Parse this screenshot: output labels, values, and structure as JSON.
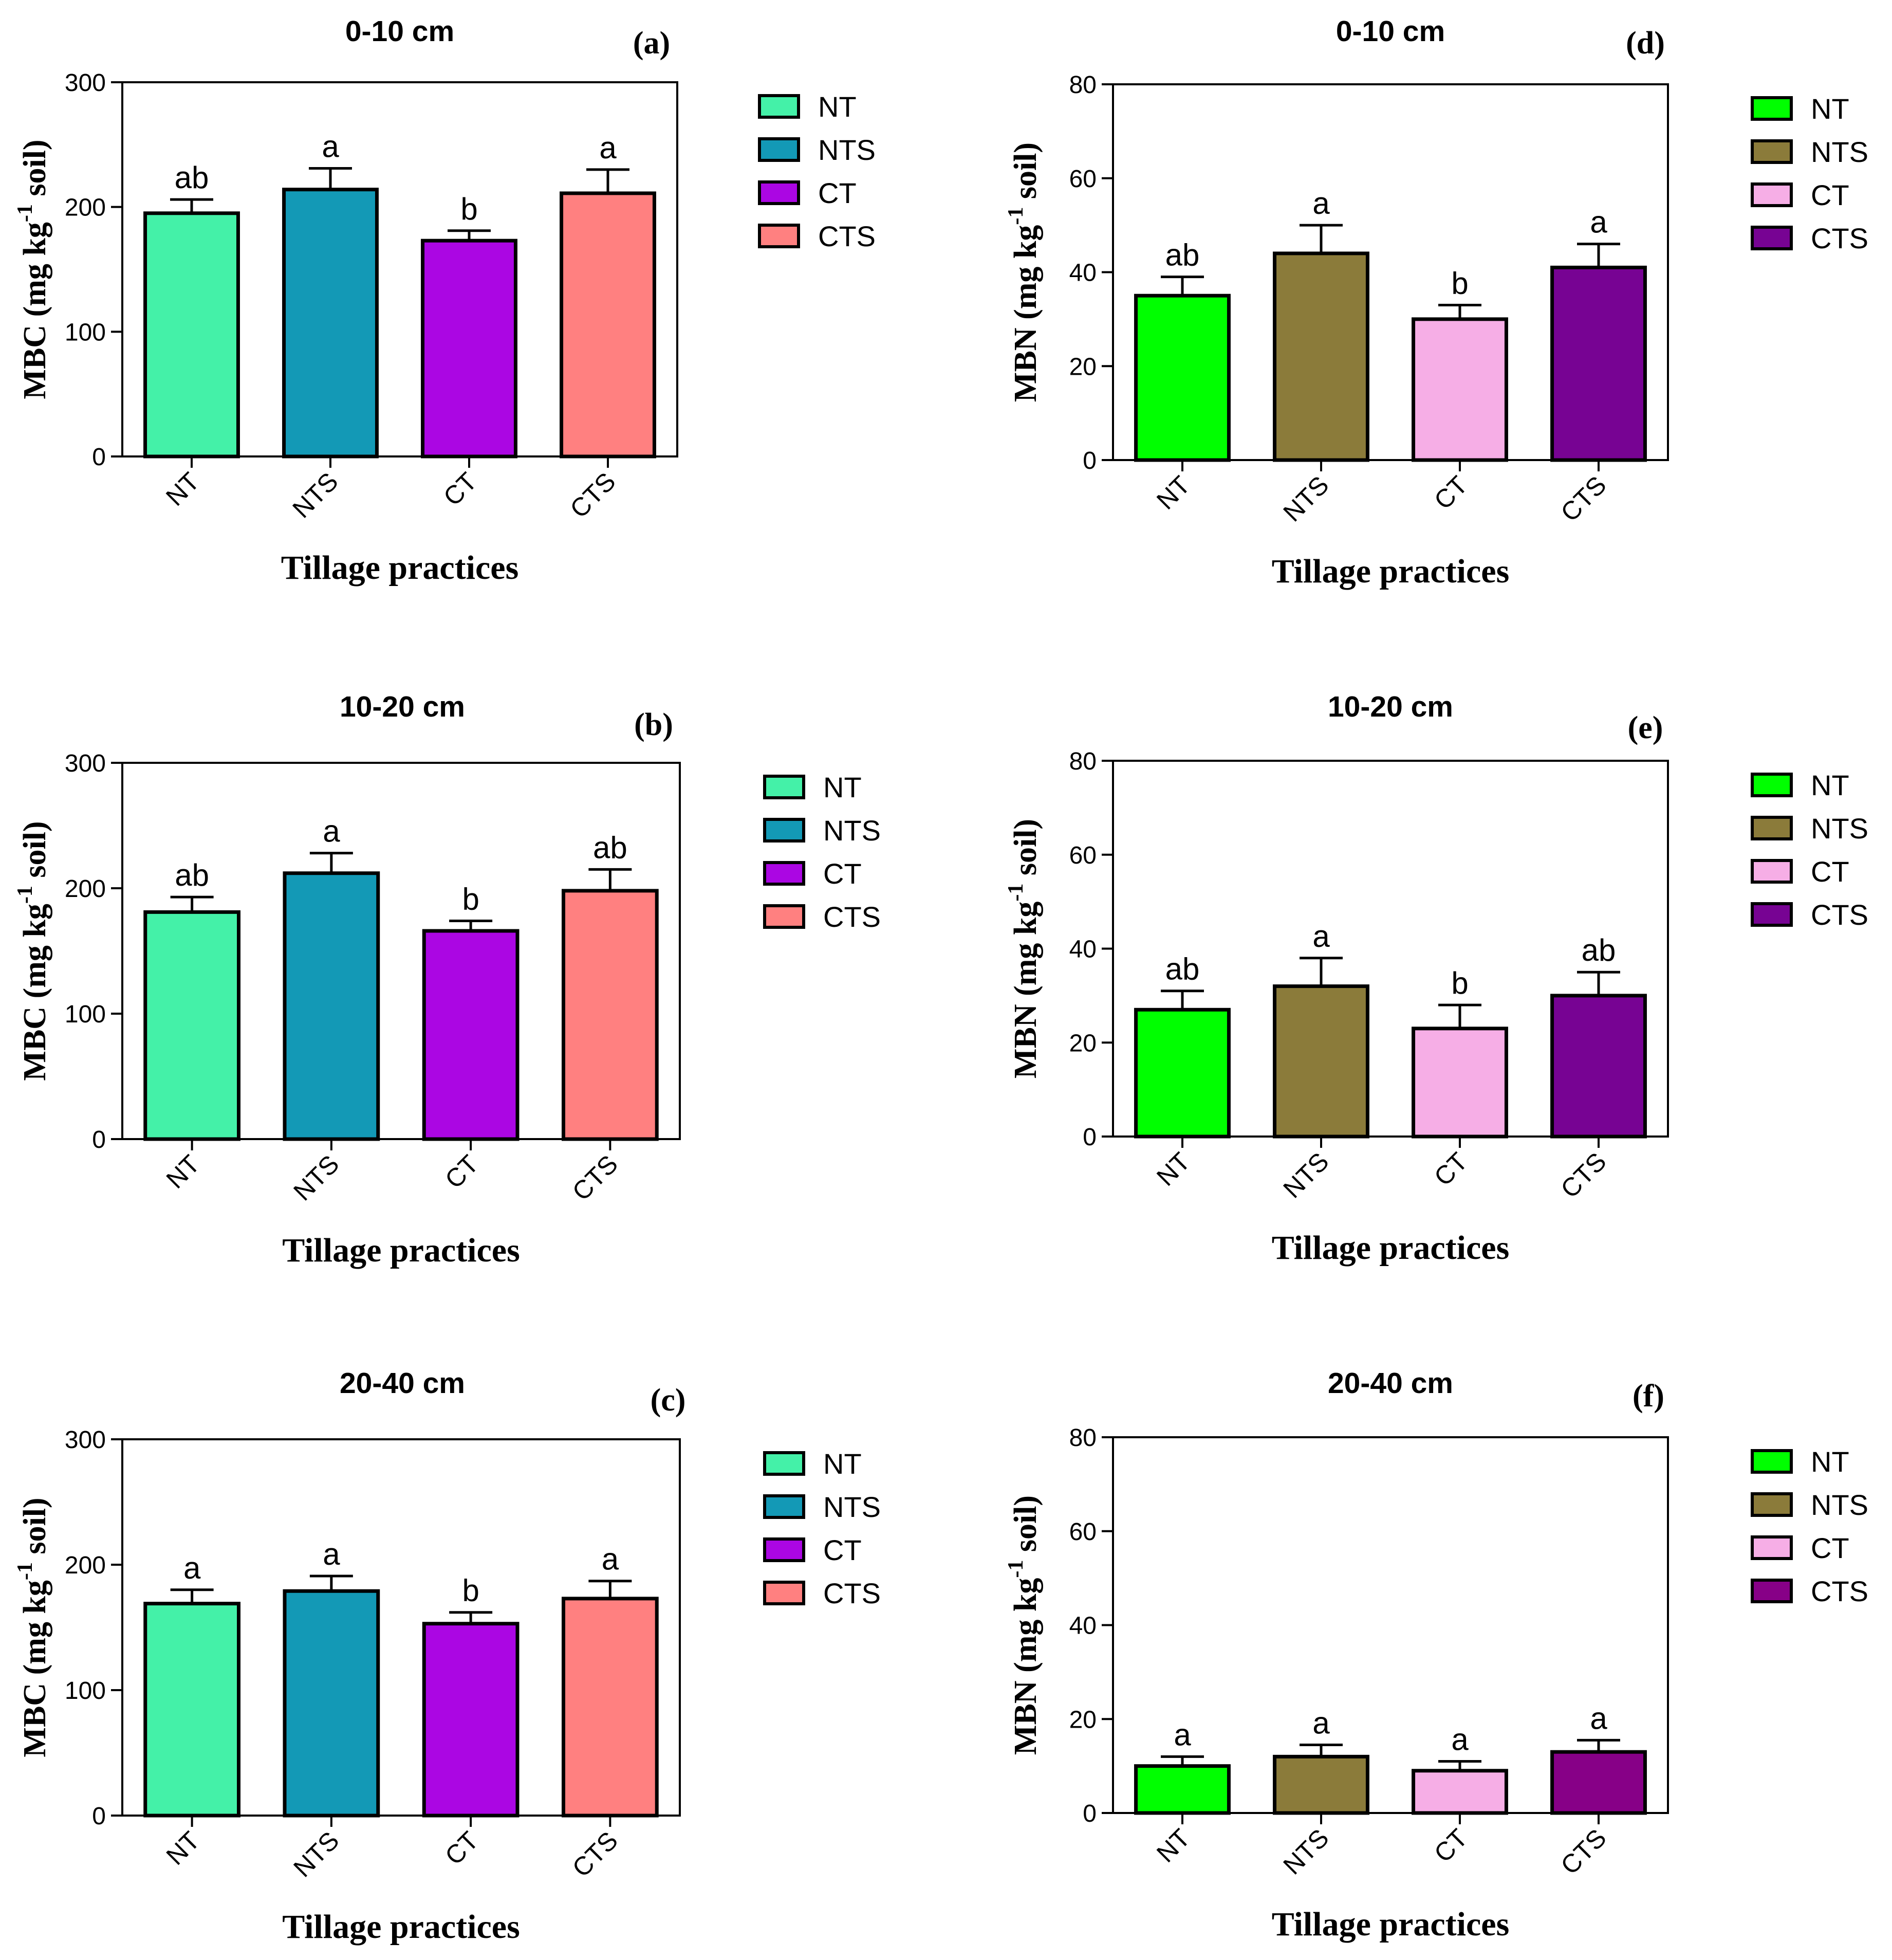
{
  "chart_data": [
    {
      "id": "a",
      "type": "bar",
      "panel_label": "(a)",
      "title": "0-10 cm",
      "ylabel": "MBC (mg kg",
      "ylabel_sup": "-1",
      "ylabel_end": " soil)",
      "xlabel": "Tillage practices",
      "ylim": [
        0,
        300
      ],
      "yticks": [
        "0",
        "100",
        "200",
        "300"
      ],
      "categories": [
        "NT",
        "NTS",
        "CT",
        "CTS"
      ],
      "values": [
        195,
        214,
        173,
        211
      ],
      "errors": [
        11,
        17,
        8,
        19
      ],
      "labels": [
        "ab",
        "a",
        "b",
        "a"
      ],
      "colors": [
        "#44F1A8",
        "#1399B6",
        "#AB06E3",
        "#FF8080"
      ],
      "legend": [
        "NT",
        "NTS",
        "CT",
        "CTS"
      ],
      "legend_position": "right"
    },
    {
      "id": "b",
      "type": "bar",
      "panel_label": "(b)",
      "title": "10-20 cm",
      "ylabel": "MBC (mg kg",
      "ylabel_sup": "-1",
      "ylabel_end": " soil)",
      "xlabel": "Tillage practices",
      "ylim": [
        0,
        300
      ],
      "yticks": [
        "0",
        "100",
        "200",
        "300"
      ],
      "categories": [
        "NT",
        "NTS",
        "CT",
        "CTS"
      ],
      "values": [
        181,
        212,
        166,
        198
      ],
      "errors": [
        12,
        16,
        8,
        17
      ],
      "labels": [
        "ab",
        "a",
        "b",
        "ab"
      ],
      "colors": [
        "#44F1A8",
        "#1399B6",
        "#AB06E3",
        "#FF8080"
      ],
      "legend": [
        "NT",
        "NTS",
        "CT",
        "CTS"
      ],
      "legend_position": "right"
    },
    {
      "id": "c",
      "type": "bar",
      "panel_label": "(c)",
      "title": "20-40 cm",
      "ylabel": "MBC (mg kg",
      "ylabel_sup": "-1",
      "ylabel_end": " soil)",
      "xlabel": "Tillage practices",
      "ylim": [
        0,
        300
      ],
      "yticks": [
        "0",
        "100",
        "200",
        "300"
      ],
      "categories": [
        "NT",
        "NTS",
        "CT",
        "CTS"
      ],
      "values": [
        169,
        179,
        153,
        173
      ],
      "errors": [
        11,
        12,
        9,
        14
      ],
      "labels": [
        "a",
        "a",
        "b",
        "a"
      ],
      "colors": [
        "#44F1A8",
        "#1399B6",
        "#AB06E3",
        "#FF8080"
      ],
      "legend": [
        "NT",
        "NTS",
        "CT",
        "CTS"
      ],
      "legend_position": "right"
    },
    {
      "id": "d",
      "type": "bar",
      "panel_label": "(d)",
      "title": "0-10 cm",
      "ylabel": "MBN (mg kg",
      "ylabel_sup": "-1",
      "ylabel_end": " soil)",
      "xlabel": "Tillage practices",
      "ylim": [
        0,
        80
      ],
      "yticks": [
        "0",
        "20",
        "40",
        "60",
        "80"
      ],
      "categories": [
        "NT",
        "NTS",
        "CT",
        "CTS"
      ],
      "values": [
        35,
        44,
        30,
        41
      ],
      "errors": [
        4,
        6,
        3,
        5
      ],
      "labels": [
        "ab",
        "a",
        "b",
        "a"
      ],
      "colors": [
        "#00FF00",
        "#8B7B3A",
        "#F6AEE6",
        "#770393"
      ],
      "legend": [
        "NT",
        "NTS",
        "CT",
        "CTS"
      ],
      "legend_position": "right"
    },
    {
      "id": "e",
      "type": "bar",
      "panel_label": "(e)",
      "title": "10-20 cm",
      "ylabel": "MBN (mg kg",
      "ylabel_sup": "-1",
      "ylabel_end": " soil)",
      "xlabel": "Tillage practices",
      "ylim": [
        0,
        80
      ],
      "yticks": [
        "0",
        "20",
        "40",
        "60",
        "80"
      ],
      "categories": [
        "NT",
        "NTS",
        "CT",
        "CTS"
      ],
      "values": [
        27,
        32,
        23,
        30
      ],
      "errors": [
        4,
        6,
        5,
        5
      ],
      "labels": [
        "ab",
        "a",
        "b",
        "ab"
      ],
      "colors": [
        "#00FF00",
        "#8B7B3A",
        "#F6AEE6",
        "#770393"
      ],
      "legend": [
        "NT",
        "NTS",
        "CT",
        "CTS"
      ],
      "legend_position": "right"
    },
    {
      "id": "f",
      "type": "bar",
      "panel_label": "(f)",
      "title": "20-40 cm",
      "ylabel": "MBN (mg kg",
      "ylabel_sup": "-1",
      "ylabel_end": " soil)",
      "xlabel": "Tillage practices",
      "ylim": [
        0,
        80
      ],
      "yticks": [
        "0",
        "20",
        "40",
        "60",
        "80"
      ],
      "categories": [
        "NT",
        "NTS",
        "CT",
        "CTS"
      ],
      "values": [
        10,
        12,
        9,
        13
      ],
      "errors": [
        2,
        2.5,
        2,
        2.5
      ],
      "labels": [
        "a",
        "a",
        "a",
        "a"
      ],
      "colors": [
        "#00FF00",
        "#8B7B3A",
        "#F6AEE6",
        "#870087"
      ],
      "legend": [
        "NT",
        "NTS",
        "CT",
        "CTS"
      ],
      "legend_position": "right"
    }
  ]
}
